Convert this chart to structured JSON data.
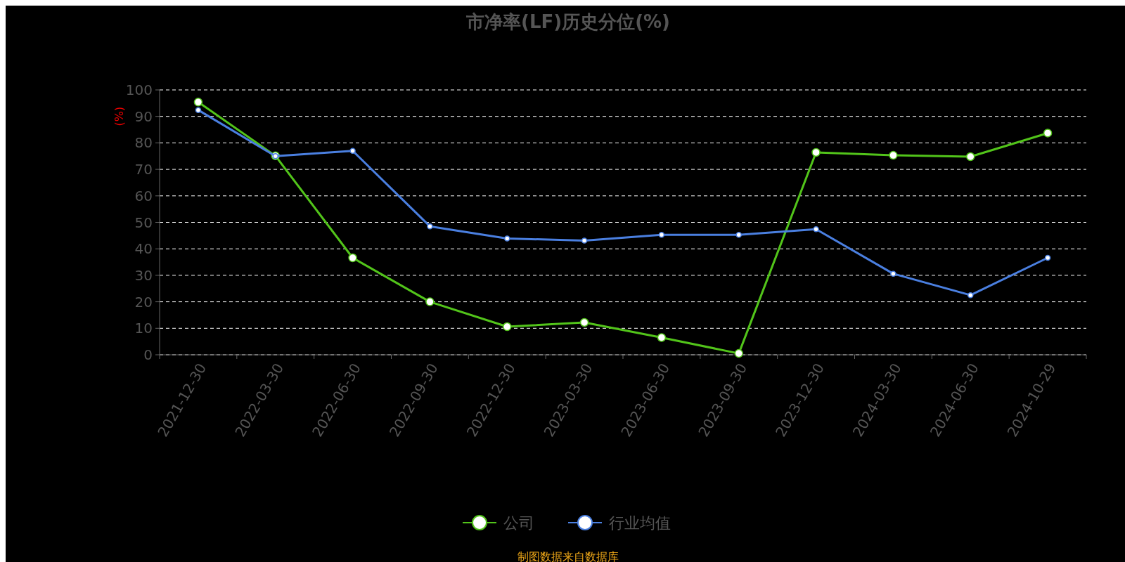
{
  "chart_data": {
    "type": "line",
    "title": "市净率(LF)历史分位(%)",
    "ylabel": "(%)",
    "categories": [
      "2021-12-30",
      "2022-03-30",
      "2022-06-30",
      "2022-09-30",
      "2022-12-30",
      "2023-03-30",
      "2023-06-30",
      "2023-09-30",
      "2023-12-30",
      "2024-03-30",
      "2024-06-30",
      "2024-10-29"
    ],
    "series": [
      {
        "name": "公司",
        "color": "#52c41a",
        "values": [
          95.4,
          75.1,
          36.6,
          20.0,
          10.6,
          12.2,
          6.5,
          0.5,
          76.4,
          75.3,
          74.8,
          83.7
        ]
      },
      {
        "name": "行业均值",
        "color": "#4a7fe0",
        "values": [
          92.4,
          75.0,
          77.0,
          48.5,
          43.9,
          43.1,
          45.3,
          45.3,
          47.4,
          30.6,
          22.5,
          36.6
        ]
      }
    ],
    "ylim": [
      0,
      100
    ],
    "yticks": [
      0,
      10,
      20,
      30,
      40,
      50,
      60,
      70,
      80,
      90,
      100
    ],
    "grid": "y",
    "legend": "bottom",
    "marker": "circle",
    "line_style": "solid",
    "annotations": [
      "制图数据来自数据库"
    ]
  }
}
